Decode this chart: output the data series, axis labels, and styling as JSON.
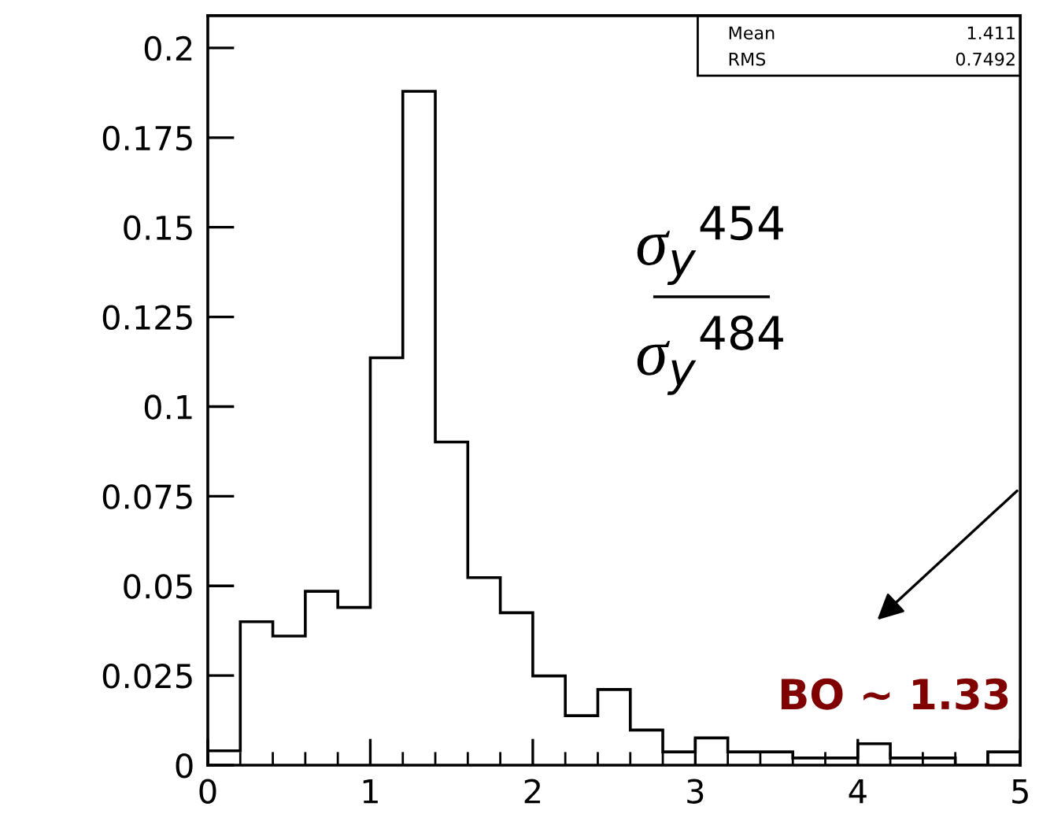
{
  "chart_data": {
    "type": "histogram",
    "color": "#000000",
    "bins": [
      0,
      0.2,
      0.4,
      0.6,
      0.8,
      1.0,
      1.2,
      1.4,
      1.6,
      1.8,
      2.0,
      2.2,
      2.4,
      2.6,
      2.8,
      3.0,
      3.2,
      3.4,
      3.6,
      3.8,
      4.0,
      4.2,
      4.4,
      4.6,
      4.8,
      5.0
    ],
    "values": [
      0.004,
      0.04,
      0.036,
      0.0485,
      0.044,
      0.1136,
      0.1879,
      0.0901,
      0.0523,
      0.0425,
      0.0249,
      0.0138,
      0.0211,
      0.0098,
      0.0037,
      0.0076,
      0.0037,
      0.0037,
      0.002,
      0.002,
      0.006,
      0.002,
      0.002,
      0,
      0.0037
    ],
    "xlim": [
      0,
      5
    ],
    "xticks": [
      0,
      {
        "value": 0.2,
        "label": null
      },
      {
        "value": 0.4,
        "label": null
      },
      {
        "value": 0.6,
        "label": null
      },
      {
        "value": 0.8,
        "label": null
      },
      1,
      {
        "value": 1.2,
        "label": null
      },
      {
        "value": 1.4,
        "label": null
      },
      {
        "value": 1.6,
        "label": null
      },
      {
        "value": 1.8,
        "label": null
      },
      2,
      {
        "value": 2.2,
        "label": null
      },
      {
        "value": 2.4,
        "label": null
      },
      {
        "value": 2.6,
        "label": null
      },
      {
        "value": 2.8,
        "label": null
      },
      3,
      {
        "value": 3.2,
        "label": null
      },
      {
        "value": 3.4,
        "label": null
      },
      {
        "value": 3.6,
        "label": null
      },
      {
        "value": 3.8,
        "label": null
      },
      4,
      {
        "value": 4.2,
        "label": null
      },
      {
        "value": 4.4,
        "label": null
      },
      {
        "value": 4.6,
        "label": null
      },
      {
        "value": 4.8,
        "label": null
      },
      5
    ],
    "ylim": [
      0,
      0.209
    ],
    "yticks": [
      0,
      0.025,
      0.05,
      0.075,
      0.1,
      0.125,
      0.15,
      0.175,
      0.2
    ],
    "grid": false,
    "annotations": [
      "Mean",
      "1.411",
      "RMS",
      "0.7492",
      "σ$_{y}$$^{454}$",
      "σ$_{y}$$^{484}$",
      "BO ~ 1.33"
    ]
  }
}
